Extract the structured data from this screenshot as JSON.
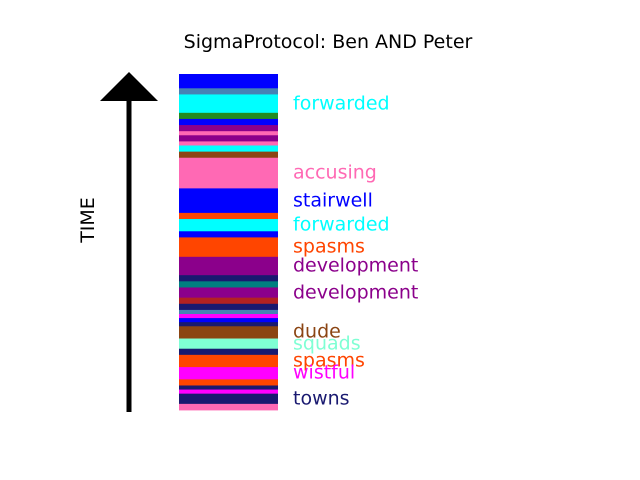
{
  "title": "SigmaProtocol: Ben AND Peter",
  "axis_label": "TIME",
  "colors": {
    "blue": "#0000ff",
    "steel": "#4682b4",
    "cyan": "#00ffff",
    "green": "#228b22",
    "navy": "#191970",
    "purple": "#8b008b",
    "pink": "#ff69b4",
    "orange": "#ff4500",
    "teal": "#008080",
    "brick": "#b22222",
    "magenta": "#ff00ff",
    "brown": "#8b4513",
    "aquamarine": "#7fffd4"
  },
  "segments": [
    {
      "color": "blue",
      "weight": 1.4
    },
    {
      "color": "steel",
      "weight": 0.6
    },
    {
      "color": "cyan",
      "weight": 1.8
    },
    {
      "color": "green",
      "weight": 0.6
    },
    {
      "color": "blue",
      "weight": 0.6
    },
    {
      "color": "purple",
      "weight": 0.6
    },
    {
      "color": "pink",
      "weight": 0.4
    },
    {
      "color": "purple",
      "weight": 0.6
    },
    {
      "color": "pink",
      "weight": 0.4
    },
    {
      "color": "cyan",
      "weight": 0.6
    },
    {
      "color": "brown",
      "weight": 0.6
    },
    {
      "color": "pink",
      "weight": 3.0
    },
    {
      "color": "blue",
      "weight": 2.4
    },
    {
      "color": "orange",
      "weight": 0.6
    },
    {
      "color": "cyan",
      "weight": 1.2
    },
    {
      "color": "blue",
      "weight": 0.6
    },
    {
      "color": "orange",
      "weight": 1.9
    },
    {
      "color": "purple",
      "weight": 1.8
    },
    {
      "color": "navy",
      "weight": 0.6
    },
    {
      "color": "teal",
      "weight": 0.6
    },
    {
      "color": "purple",
      "weight": 1.0
    },
    {
      "color": "brick",
      "weight": 0.6
    },
    {
      "color": "navy",
      "weight": 0.6
    },
    {
      "color": "steel",
      "weight": 0.4
    },
    {
      "color": "magenta",
      "weight": 0.4
    },
    {
      "color": "blue",
      "weight": 0.4
    },
    {
      "color": "navy",
      "weight": 0.4
    },
    {
      "color": "brown",
      "weight": 1.2
    },
    {
      "color": "aquamarine",
      "weight": 1.0
    },
    {
      "color": "navy",
      "weight": 0.6
    },
    {
      "color": "orange",
      "weight": 1.2
    },
    {
      "color": "magenta",
      "weight": 1.2
    },
    {
      "color": "orange",
      "weight": 0.6
    },
    {
      "color": "navy",
      "weight": 0.4
    },
    {
      "color": "magenta",
      "weight": 0.4
    },
    {
      "color": "navy",
      "weight": 1.0
    },
    {
      "color": "pink",
      "weight": 0.6
    }
  ],
  "labels": [
    {
      "text": "forwarded",
      "color": "cyan",
      "anchor": 2
    },
    {
      "text": "accusing",
      "color": "pink",
      "anchor": 11
    },
    {
      "text": "stairwell",
      "color": "blue",
      "anchor": 12
    },
    {
      "text": "forwarded",
      "color": "cyan",
      "anchor": 14
    },
    {
      "text": "spasms",
      "color": "orange",
      "anchor": 16
    },
    {
      "text": "development",
      "color": "purple",
      "anchor": 17
    },
    {
      "text": "development",
      "color": "purple",
      "anchor": 20
    },
    {
      "text": "dude",
      "color": "brown",
      "anchor": 27
    },
    {
      "text": "squads",
      "color": "aquamarine",
      "anchor": 28
    },
    {
      "text": "spasms",
      "color": "orange",
      "anchor": 30
    },
    {
      "text": "wistful",
      "color": "magenta",
      "anchor": 31
    },
    {
      "text": "towns",
      "color": "navy",
      "anchor": 35
    }
  ]
}
